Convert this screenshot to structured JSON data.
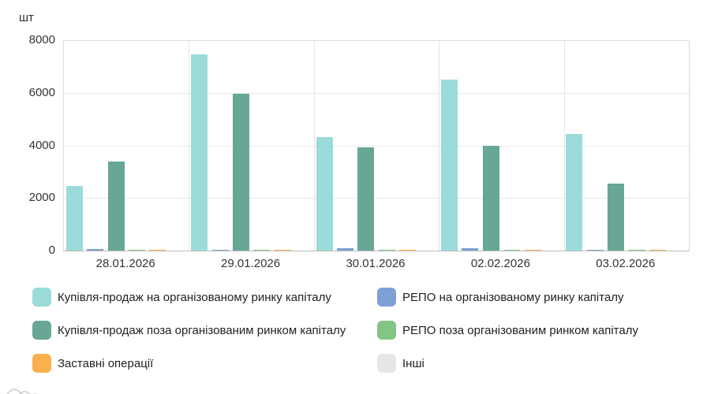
{
  "chart_data": {
    "type": "bar",
    "title": "",
    "xlabel": "",
    "ylabel": "шт",
    "ylim": [
      0,
      8000
    ],
    "yticks": [
      0,
      2000,
      4000,
      6000,
      8000
    ],
    "grid": true,
    "legend_position": "bottom",
    "categories": [
      "28.01.2026",
      "29.01.2026",
      "30.01.2026",
      "02.02.2026",
      "03.02.2026"
    ],
    "series": [
      {
        "name": "Купівля-продаж на організованому ринку капіталу",
        "color": "#9BDBD9",
        "values": [
          2450,
          7450,
          4330,
          6500,
          4430
        ]
      },
      {
        "name": "РЕПО на організованому ринку капіталу",
        "color": "#7EA0D4",
        "values": [
          50,
          30,
          90,
          80,
          40
        ]
      },
      {
        "name": "Купівля-продаж поза організованим ринком капіталу",
        "color": "#68A695",
        "values": [
          3400,
          5970,
          3930,
          3990,
          2540
        ]
      },
      {
        "name": "РЕПО поза організованим ринком капіталу",
        "color": "#83C584",
        "values": [
          30,
          25,
          25,
          25,
          30
        ]
      },
      {
        "name": "Заставні операції",
        "color": "#FBB050",
        "values": [
          30,
          30,
          40,
          40,
          40
        ]
      },
      {
        "name": "Інші",
        "color": "#E6E6E6",
        "values": [
          0,
          0,
          0,
          0,
          0
        ]
      }
    ]
  },
  "watermark": {
    "icon": "amcharts-logo"
  }
}
